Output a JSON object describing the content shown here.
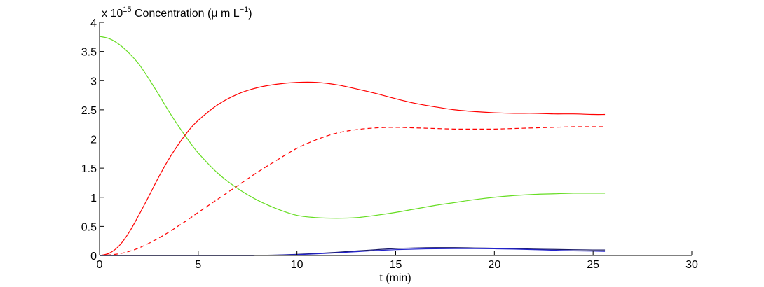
{
  "chart_data": {
    "type": "line",
    "ylabel_prefix": "x 10",
    "ylabel_exponent": "15",
    "ylabel_main": "Concentration (μ m L",
    "ylabel_unit_exponent": "−1",
    "ylabel_close": ")",
    "xlabel": "t (min)",
    "xlim": [
      0,
      30
    ],
    "ylim": [
      0,
      4
    ],
    "xticks": [
      0,
      5,
      10,
      15,
      20,
      25,
      30
    ],
    "xtick_labels": [
      "0",
      "5",
      "10",
      "15",
      "20",
      "25",
      "30"
    ],
    "yticks": [
      0,
      0.5,
      1,
      1.5,
      2,
      2.5,
      3,
      3.5,
      4
    ],
    "ytick_labels": [
      "0",
      "0.5",
      "1",
      "1.5",
      "2",
      "2.5",
      "3",
      "3.5",
      "4"
    ],
    "grid": false,
    "legend": false,
    "series": [
      {
        "color": "#66dd22",
        "dash": "solid",
        "x": [
          0,
          0.5,
          1,
          1.5,
          2,
          2.5,
          3,
          3.5,
          4,
          4.5,
          5,
          6,
          7,
          8,
          9,
          10,
          11,
          12,
          13,
          14,
          15,
          16,
          17,
          18,
          19,
          20,
          21,
          22,
          23,
          24,
          25,
          25.6
        ],
        "y": [
          3.76,
          3.72,
          3.62,
          3.47,
          3.28,
          3.03,
          2.76,
          2.48,
          2.22,
          1.98,
          1.76,
          1.41,
          1.15,
          0.95,
          0.8,
          0.69,
          0.65,
          0.64,
          0.65,
          0.69,
          0.74,
          0.8,
          0.86,
          0.91,
          0.96,
          1.0,
          1.03,
          1.05,
          1.06,
          1.07,
          1.07,
          1.07
        ]
      },
      {
        "color": "#ff0000",
        "dash": "solid",
        "x": [
          0,
          0.5,
          1,
          1.5,
          2,
          2.5,
          3,
          3.5,
          4,
          4.5,
          5,
          6,
          7,
          8,
          9,
          10,
          11,
          12,
          13,
          14,
          15,
          16,
          17,
          18,
          19,
          20,
          21,
          22,
          23,
          24,
          25,
          25.6
        ],
        "y": [
          0,
          0.04,
          0.17,
          0.4,
          0.7,
          1.02,
          1.35,
          1.65,
          1.91,
          2.14,
          2.32,
          2.59,
          2.77,
          2.88,
          2.94,
          2.97,
          2.97,
          2.93,
          2.86,
          2.78,
          2.69,
          2.61,
          2.55,
          2.5,
          2.47,
          2.45,
          2.44,
          2.44,
          2.43,
          2.43,
          2.42,
          2.42
        ]
      },
      {
        "color": "#ff0000",
        "dash": "dashed",
        "x": [
          0,
          0.5,
          1,
          1.5,
          2,
          2.5,
          3,
          3.5,
          4,
          4.5,
          5,
          6,
          7,
          8,
          9,
          10,
          11,
          12,
          13,
          14,
          15,
          16,
          17,
          18,
          19,
          20,
          21,
          22,
          23,
          24,
          25,
          25.6
        ],
        "y": [
          0,
          0.01,
          0.03,
          0.07,
          0.13,
          0.21,
          0.3,
          0.4,
          0.51,
          0.62,
          0.74,
          0.97,
          1.2,
          1.43,
          1.64,
          1.84,
          1.99,
          2.1,
          2.16,
          2.19,
          2.2,
          2.19,
          2.18,
          2.17,
          2.17,
          2.17,
          2.18,
          2.19,
          2.2,
          2.21,
          2.21,
          2.21
        ]
      },
      {
        "color": "#1a1a66",
        "dash": "solid",
        "x": [
          0,
          7,
          8,
          9,
          10,
          11,
          12,
          13,
          14,
          15,
          16,
          17,
          18,
          19,
          20,
          21,
          22,
          23,
          24,
          25,
          25.6
        ],
        "y": [
          0,
          0,
          0.002,
          0.008,
          0.02,
          0.035,
          0.055,
          0.078,
          0.1,
          0.12,
          0.13,
          0.135,
          0.135,
          0.13,
          0.125,
          0.12,
          0.11,
          0.105,
          0.1,
          0.095,
          0.095
        ]
      },
      {
        "color": "#2222cc",
        "dash": "solid",
        "x": [
          0,
          7,
          8,
          9,
          10,
          11,
          12,
          13,
          14,
          15,
          16,
          17,
          18,
          19,
          20,
          21,
          22,
          23,
          24,
          25,
          25.6
        ],
        "y": [
          0,
          0,
          0.002,
          0.006,
          0.015,
          0.028,
          0.045,
          0.065,
          0.085,
          0.1,
          0.11,
          0.115,
          0.118,
          0.118,
          0.115,
          0.11,
          0.1,
          0.09,
          0.08,
          0.075,
          0.07
        ]
      }
    ]
  }
}
